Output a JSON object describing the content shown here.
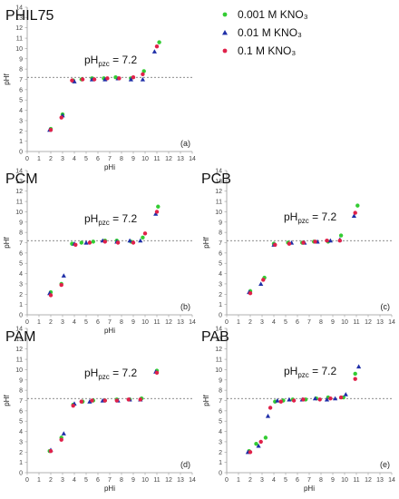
{
  "legend": [
    {
      "label": "0.001 M KNO₃",
      "color": "#33cc33",
      "marker": "circle"
    },
    {
      "label": "0.01 M KNO₃",
      "color": "#1f2fa8",
      "marker": "triangle"
    },
    {
      "label": "0.1 M KNO₃",
      "color": "#e0214a",
      "marker": "circle"
    }
  ],
  "chart_data": [
    {
      "type": "scatter",
      "title": "PHIL75",
      "tag": "(a)",
      "xlabel": "pHi",
      "ylabel": "pHf",
      "pzc_text": "pH",
      "pzc_sub": "pzc",
      "pzc_value": " = 7.2",
      "pzc": 7.2,
      "xlim": [
        0,
        14
      ],
      "ylim": [
        0,
        14
      ],
      "xticks": [
        0,
        1,
        2,
        3,
        4,
        5,
        6,
        7,
        8,
        9,
        10,
        11,
        12,
        13,
        14
      ],
      "yticks": [
        0,
        1,
        2,
        3,
        4,
        5,
        6,
        7,
        8,
        9,
        10,
        11,
        12,
        13,
        14
      ],
      "series": [
        {
          "name": "0.001 M KNO₃",
          "points": [
            [
              2.0,
              2.2
            ],
            [
              3.0,
              3.6
            ],
            [
              3.9,
              6.9
            ],
            [
              4.6,
              7.0
            ],
            [
              5.5,
              7.1
            ],
            [
              6.5,
              7.1
            ],
            [
              7.5,
              7.2
            ],
            [
              8.8,
              7.1
            ],
            [
              9.9,
              7.8
            ],
            [
              11.2,
              10.6
            ]
          ]
        },
        {
          "name": "0.01 M KNO₃",
          "points": [
            [
              1.9,
              2.1
            ],
            [
              3.0,
              3.5
            ],
            [
              4.0,
              6.8
            ],
            [
              5.5,
              7.0
            ],
            [
              6.6,
              7.0
            ],
            [
              7.7,
              7.1
            ],
            [
              8.8,
              7.0
            ],
            [
              9.8,
              7.0
            ],
            [
              10.8,
              9.7
            ]
          ]
        },
        {
          "name": "0.1 M KNO₃",
          "points": [
            [
              2.0,
              2.1
            ],
            [
              2.9,
              3.3
            ],
            [
              3.8,
              6.9
            ],
            [
              4.7,
              7.0
            ],
            [
              5.7,
              7.0
            ],
            [
              6.8,
              7.1
            ],
            [
              7.8,
              7.1
            ],
            [
              9.0,
              7.2
            ],
            [
              9.8,
              7.5
            ],
            [
              11.0,
              10.2
            ]
          ]
        }
      ]
    },
    {
      "type": "scatter",
      "title": "PCM",
      "tag": "(b)",
      "xlabel": "pHi",
      "ylabel": "pHf",
      "pzc_text": "pH",
      "pzc_sub": "pzc",
      "pzc_value": " = 7.2",
      "pzc": 7.2,
      "xlim": [
        0,
        14
      ],
      "ylim": [
        0,
        14
      ],
      "xticks": [
        0,
        1,
        2,
        3,
        4,
        5,
        6,
        7,
        8,
        9,
        10,
        11,
        12,
        13,
        14
      ],
      "yticks": [
        0,
        1,
        2,
        3,
        4,
        5,
        6,
        7,
        8,
        9,
        10,
        11,
        12,
        13,
        14
      ],
      "series": [
        {
          "name": "0.001 M KNO₃",
          "points": [
            [
              2.0,
              2.2
            ],
            [
              2.9,
              3.0
            ],
            [
              3.8,
              6.9
            ],
            [
              4.6,
              7.0
            ],
            [
              5.6,
              7.1
            ],
            [
              6.6,
              7.2
            ],
            [
              7.6,
              7.2
            ],
            [
              8.8,
              7.1
            ],
            [
              9.8,
              7.5
            ],
            [
              11.1,
              10.5
            ]
          ]
        },
        {
          "name": "0.01 M KNO₃",
          "points": [
            [
              1.9,
              2.1
            ],
            [
              3.1,
              3.8
            ],
            [
              4.0,
              6.9
            ],
            [
              5.0,
              7.0
            ],
            [
              6.4,
              7.2
            ],
            [
              7.6,
              7.1
            ],
            [
              8.7,
              7.2
            ],
            [
              9.6,
              7.2
            ],
            [
              10.9,
              9.8
            ]
          ]
        },
        {
          "name": "0.1 M KNO₃",
          "points": [
            [
              2.0,
              1.9
            ],
            [
              2.9,
              2.9
            ],
            [
              4.1,
              6.8
            ],
            [
              5.3,
              7.0
            ],
            [
              6.6,
              7.1
            ],
            [
              7.7,
              7.0
            ],
            [
              9.0,
              7.0
            ],
            [
              10.0,
              7.9
            ],
            [
              11.0,
              10.0
            ]
          ]
        }
      ]
    },
    {
      "type": "scatter",
      "title": "PCB",
      "tag": "(c)",
      "xlabel": "",
      "ylabel": "pHf",
      "pzc_text": "pH",
      "pzc_sub": "pzc",
      "pzc_value": " = 7.2",
      "pzc": 7.2,
      "xlim": [
        0,
        14
      ],
      "ylim": [
        0,
        14
      ],
      "xticks": [
        0,
        1,
        2,
        3,
        4,
        5,
        6,
        7,
        8,
        9,
        10,
        11,
        12,
        13,
        14
      ],
      "yticks": [
        0,
        1,
        2,
        3,
        4,
        5,
        6,
        7,
        8,
        9,
        10,
        11,
        12,
        13,
        14
      ],
      "series": [
        {
          "name": "0.001 M KNO₃",
          "points": [
            [
              2.0,
              2.3
            ],
            [
              3.2,
              3.6
            ],
            [
              4.0,
              6.9
            ],
            [
              5.2,
              7.0
            ],
            [
              6.4,
              7.0
            ],
            [
              7.4,
              7.1
            ],
            [
              8.6,
              7.1
            ],
            [
              9.7,
              7.7
            ],
            [
              11.1,
              10.6
            ]
          ]
        },
        {
          "name": "0.01 M KNO₃",
          "points": [
            [
              1.9,
              2.2
            ],
            [
              2.9,
              3.0
            ],
            [
              4.0,
              6.8
            ],
            [
              5.5,
              7.0
            ],
            [
              6.6,
              7.0
            ],
            [
              7.7,
              7.1
            ],
            [
              8.8,
              7.2
            ],
            [
              9.6,
              7.3
            ],
            [
              10.8,
              9.6
            ]
          ]
        },
        {
          "name": "0.1 M KNO₃",
          "points": [
            [
              2.0,
              2.1
            ],
            [
              3.1,
              3.4
            ],
            [
              4.1,
              6.8
            ],
            [
              5.3,
              6.9
            ],
            [
              6.5,
              7.0
            ],
            [
              7.5,
              7.1
            ],
            [
              8.5,
              7.2
            ],
            [
              9.6,
              7.2
            ],
            [
              10.9,
              9.9
            ]
          ]
        }
      ]
    },
    {
      "type": "scatter",
      "title": "PAM",
      "tag": "(d)",
      "xlabel": "pHi",
      "ylabel": "pHf",
      "pzc_text": "pH",
      "pzc_sub": "pzc",
      "pzc_value": " = 7.2",
      "pzc": 7.2,
      "xlim": [
        0,
        14
      ],
      "ylim": [
        0,
        14
      ],
      "xticks": [
        0,
        1,
        2,
        3,
        4,
        5,
        6,
        7,
        8,
        9,
        10,
        11,
        12,
        13,
        14
      ],
      "yticks": [
        0,
        1,
        2,
        3,
        4,
        5,
        6,
        7,
        8,
        9,
        10,
        11,
        12,
        13,
        14
      ],
      "series": [
        {
          "name": "0.001 M KNO₃",
          "points": [
            [
              1.9,
              2.1
            ],
            [
              2.9,
              3.4
            ],
            [
              3.9,
              6.6
            ],
            [
              4.7,
              6.9
            ],
            [
              5.6,
              7.0
            ],
            [
              6.6,
              7.0
            ],
            [
              7.6,
              7.1
            ],
            [
              8.7,
              7.1
            ],
            [
              9.7,
              7.2
            ],
            [
              11.0,
              9.9
            ]
          ]
        },
        {
          "name": "0.01 M KNO₃",
          "points": [
            [
              2.0,
              2.2
            ],
            [
              3.1,
              3.8
            ],
            [
              4.0,
              6.7
            ],
            [
              5.3,
              6.9
            ],
            [
              6.4,
              7.0
            ],
            [
              7.7,
              7.0
            ],
            [
              8.7,
              7.1
            ],
            [
              9.6,
              7.1
            ],
            [
              10.9,
              9.8
            ]
          ]
        },
        {
          "name": "0.1 M KNO₃",
          "points": [
            [
              2.0,
              2.1
            ],
            [
              2.9,
              3.2
            ],
            [
              3.9,
              6.5
            ],
            [
              4.6,
              6.9
            ],
            [
              5.5,
              7.0
            ],
            [
              6.6,
              7.0
            ],
            [
              7.6,
              7.0
            ],
            [
              8.6,
              7.1
            ],
            [
              9.6,
              7.1
            ],
            [
              11.0,
              9.7
            ]
          ]
        }
      ]
    },
    {
      "type": "scatter",
      "title": "PAB",
      "tag": "(e)",
      "xlabel": "pHi",
      "ylabel": "pHf",
      "pzc_text": "pH",
      "pzc_sub": "pzc",
      "pzc_value": " = 7.2",
      "pzc": 7.2,
      "xlim": [
        0,
        14
      ],
      "ylim": [
        0,
        14
      ],
      "xticks": [
        0,
        1,
        2,
        3,
        4,
        5,
        6,
        7,
        8,
        9,
        10,
        11,
        12,
        13,
        14
      ],
      "yticks": [
        0,
        1,
        2,
        3,
        4,
        5,
        6,
        7,
        8,
        9,
        10,
        11,
        12,
        13,
        14
      ],
      "series": [
        {
          "name": "0.001 M KNO₃",
          "points": [
            [
              1.9,
              2.1
            ],
            [
              2.5,
              2.8
            ],
            [
              3.3,
              3.4
            ],
            [
              4.1,
              6.9
            ],
            [
              4.8,
              7.0
            ],
            [
              5.6,
              7.1
            ],
            [
              6.7,
              7.1
            ],
            [
              7.6,
              7.2
            ],
            [
              8.6,
              7.3
            ],
            [
              9.9,
              7.3
            ],
            [
              10.9,
              9.6
            ]
          ]
        },
        {
          "name": "0.01 M KNO₃",
          "points": [
            [
              1.8,
              2.0
            ],
            [
              2.7,
              2.6
            ],
            [
              3.5,
              5.5
            ],
            [
              4.3,
              7.0
            ],
            [
              5.3,
              7.1
            ],
            [
              6.4,
              7.1
            ],
            [
              7.5,
              7.2
            ],
            [
              8.5,
              7.1
            ],
            [
              9.2,
              7.2
            ],
            [
              10.1,
              7.6
            ],
            [
              11.2,
              10.3
            ]
          ]
        },
        {
          "name": "0.1 M KNO₃",
          "points": [
            [
              2.0,
              2.0
            ],
            [
              2.9,
              3.0
            ],
            [
              3.7,
              6.3
            ],
            [
              4.6,
              6.9
            ],
            [
              5.7,
              7.0
            ],
            [
              6.5,
              7.1
            ],
            [
              7.9,
              7.1
            ],
            [
              8.8,
              7.2
            ],
            [
              9.7,
              7.3
            ],
            [
              10.9,
              9.1
            ]
          ]
        }
      ]
    }
  ]
}
